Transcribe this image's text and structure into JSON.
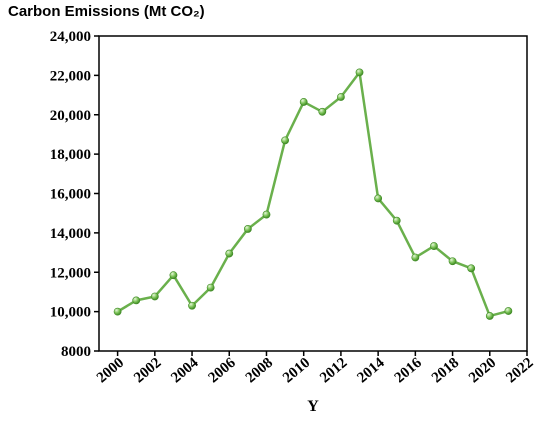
{
  "chart_data": {
    "type": "line",
    "title": "",
    "ylabel": "Carbon Emissions (Mt CO₂)",
    "xlabel": "Y",
    "xlim": [
      1999,
      2022
    ],
    "ylim": [
      8000,
      24000
    ],
    "x_ticks": [
      2000,
      2002,
      2004,
      2006,
      2008,
      2010,
      2012,
      2014,
      2016,
      2018,
      2020,
      2022
    ],
    "x_tick_labels": [
      "2000",
      "2002",
      "2004",
      "2006",
      "2008",
      "2010",
      "2012",
      "2014",
      "2016",
      "2018",
      "2020",
      "2022"
    ],
    "y_ticks": [
      8000,
      10000,
      12000,
      14000,
      16000,
      18000,
      20000,
      22000,
      24000
    ],
    "y_tick_labels": [
      "8000",
      "10,000",
      "12,000",
      "14,000",
      "16,000",
      "18,000",
      "20,000",
      "22,000",
      "24,000"
    ],
    "grid": false,
    "legend": "none",
    "series": [
      {
        "color": "#6ab04c",
        "x": [
          2000,
          2001,
          2002,
          2003,
          2004,
          2005,
          2006,
          2007,
          2008,
          2009,
          2010,
          2011,
          2012,
          2013,
          2014,
          2015,
          2016,
          2017,
          2018,
          2019,
          2020,
          2021
        ],
        "values": [
          10000,
          10570,
          10770,
          11850,
          10300,
          11220,
          12950,
          14200,
          14930,
          18700,
          20650,
          20150,
          20900,
          22150,
          15750,
          14620,
          12750,
          13330,
          12560,
          12200,
          9780,
          10030
        ]
      }
    ]
  }
}
